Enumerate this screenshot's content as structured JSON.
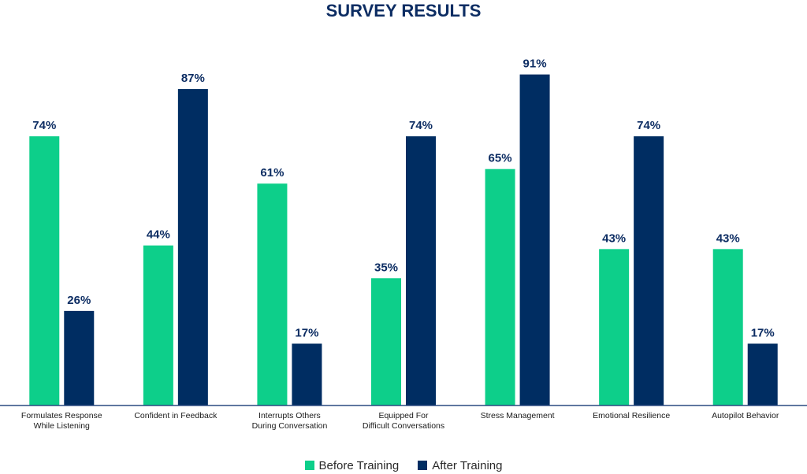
{
  "chart_data": {
    "type": "bar",
    "title": "SURVEY RESULTS",
    "categories": [
      [
        "Formulates Response",
        "While Listening"
      ],
      [
        "Confident in Feedback"
      ],
      [
        "Interrupts Others",
        "During Conversation"
      ],
      [
        "Equipped For",
        "Difficult Conversations"
      ],
      [
        "Stress Management"
      ],
      [
        "Emotional Resilience"
      ],
      [
        "Autopilot Behavior"
      ]
    ],
    "series": [
      {
        "name": "Before Training",
        "color": "#0dcf8a",
        "values": [
          74,
          44,
          61,
          35,
          65,
          43,
          43
        ]
      },
      {
        "name": "After Training",
        "color": "#002d62",
        "values": [
          26,
          87,
          17,
          74,
          91,
          74,
          17
        ]
      }
    ],
    "value_suffix": "%",
    "ylim": [
      0,
      100
    ],
    "grid": false,
    "legend_position": "bottom-center",
    "axis_color": "#2a4a80",
    "label_color": "#0d2d63"
  }
}
